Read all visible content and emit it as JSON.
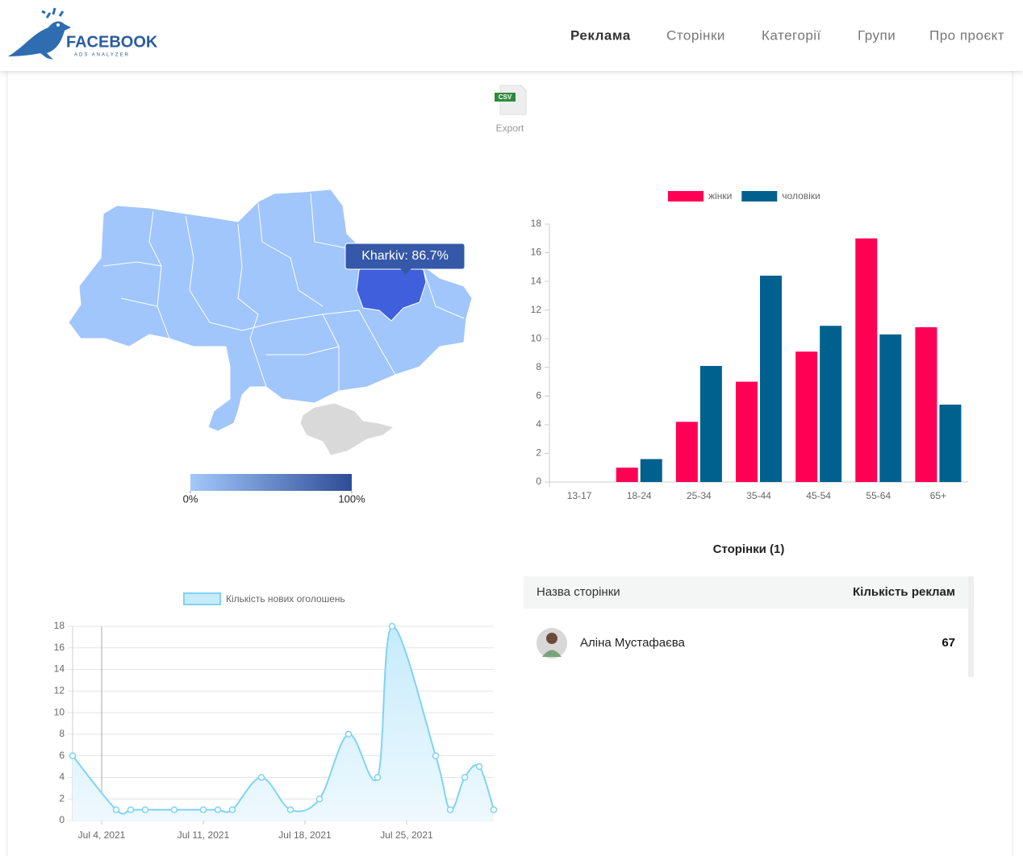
{
  "header": {
    "logo": {
      "title": "FACEBOOK",
      "subtitle": "ADS ANALYZER"
    },
    "nav": [
      "Реклама",
      "Сторінки",
      "Категорії",
      "Групи",
      "Про проєкт"
    ]
  },
  "export": {
    "badge": "CSV",
    "label": "Export"
  },
  "chart_data": [
    {
      "type": "map",
      "tooltip": "Kharkiv: 86.7%",
      "color": "#a0c6fc",
      "highlight_color": "#3f5fdd",
      "no_data_color": "#d9d9d9",
      "colorbar": {
        "colors": [
          "#a3c8fb",
          "#2f4c97"
        ],
        "lim": [
          0,
          100
        ],
        "ticks": [
          {
            "value": 0,
            "label": "0%"
          },
          {
            "value": 100,
            "label": "100%"
          }
        ]
      }
    },
    {
      "type": "bar",
      "categories": [
        "13-17",
        "18-24",
        "25-34",
        "35-44",
        "45-54",
        "55-64",
        "65+"
      ],
      "series": [
        {
          "name": "жінки",
          "color": "#ff0055",
          "values": [
            0,
            1,
            4.2,
            7,
            9.1,
            17,
            10.8
          ]
        },
        {
          "name": "чоловіки",
          "color": "#00618f",
          "values": [
            0,
            1.6,
            8.1,
            14.4,
            10.9,
            10.3,
            5.4
          ]
        }
      ],
      "ylim": [
        0,
        18
      ],
      "yticks": [
        0,
        2,
        4,
        6,
        8,
        10,
        12,
        14,
        16,
        18
      ],
      "grid": false
    },
    {
      "type": "line",
      "x": [
        "2021-07-02",
        "2021-07-05",
        "2021-07-06",
        "2021-07-07",
        "2021-07-09",
        "2021-07-11",
        "2021-07-12",
        "2021-07-13",
        "2021-07-15",
        "2021-07-17",
        "2021-07-19",
        "2021-07-21",
        "2021-07-23",
        "2021-07-24",
        "2021-07-27",
        "2021-07-28",
        "2021-07-29",
        "2021-07-30",
        "2021-07-31"
      ],
      "series": [
        {
          "name": "Кількість нових оголошень",
          "color": "#7fd3f5",
          "values": [
            6,
            1,
            1,
            1,
            1,
            1,
            1,
            1,
            4,
            1,
            2,
            8,
            4,
            18,
            6,
            1,
            4,
            5,
            1
          ]
        }
      ],
      "xlim": [
        "2021-07-02",
        "2021-07-31"
      ],
      "xticks": [
        {
          "value": "2021-07-04",
          "label": "Jul 4, 2021"
        },
        {
          "value": "2021-07-11",
          "label": "Jul 11, 2021"
        },
        {
          "value": "2021-07-18",
          "label": "Jul 18, 2021"
        },
        {
          "value": "2021-07-25",
          "label": "Jul 25, 2021"
        }
      ],
      "ylim": [
        0,
        18
      ],
      "yticks": [
        0,
        2,
        4,
        6,
        8,
        10,
        12,
        14,
        16,
        18
      ],
      "grid": true
    }
  ],
  "table": {
    "title": "Сторінки (1)",
    "columns": [
      "Назва сторінки",
      "Кількість реклам"
    ],
    "rows": [
      [
        "Аліна Мустафаєва",
        67
      ]
    ]
  }
}
